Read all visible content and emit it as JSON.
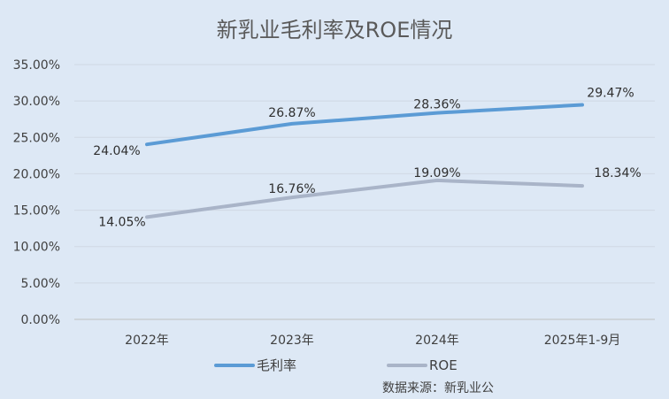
{
  "chart_data": {
    "type": "line",
    "title": "新乳业毛利率及ROE情况",
    "categories": [
      "2022年",
      "2023年",
      "2024年",
      "2025年1-9月"
    ],
    "y_ticks": [
      "0.00%",
      "5.00%",
      "10.00%",
      "15.00%",
      "20.00%",
      "25.00%",
      "30.00%",
      "35.00%"
    ],
    "ylim": [
      0,
      35
    ],
    "grid": true,
    "legend_position": "bottom",
    "series": [
      {
        "name": "毛利率",
        "color": "#5b9bd5",
        "values": [
          24.04,
          26.87,
          28.36,
          29.47
        ],
        "labels": [
          "24.04%",
          "26.87%",
          "28.36%",
          "29.47%"
        ]
      },
      {
        "name": "ROE",
        "color": "#a9b4c8",
        "values": [
          14.05,
          16.76,
          19.09,
          18.34
        ],
        "labels": [
          "14.05%",
          "16.76%",
          "19.09%",
          "18.34%"
        ]
      }
    ],
    "source": "数据来源：新乳业公"
  }
}
